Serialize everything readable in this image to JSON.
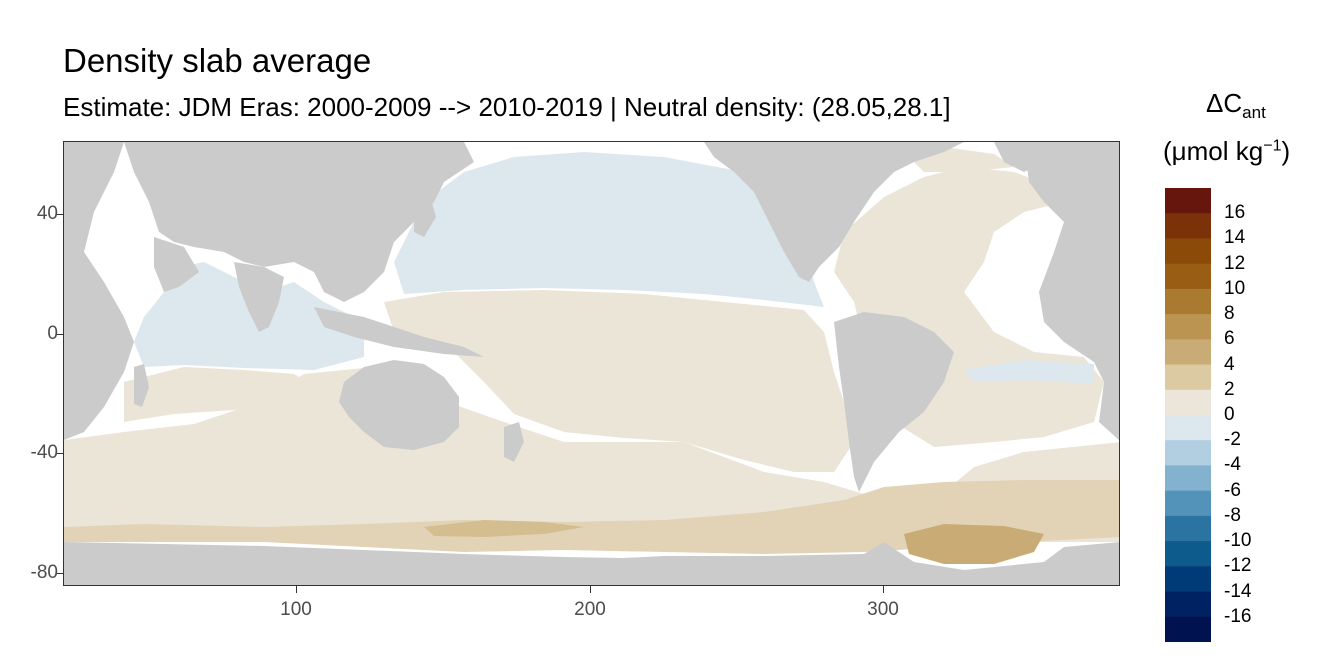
{
  "title": "Density slab average",
  "subtitle": "Estimate: JDM Eras: 2000-2009 --> 2010-2019 | Neutral density: (28.05,28.1]",
  "axes": {
    "y_ticks": [
      "40",
      "0",
      "-40",
      "-80"
    ],
    "x_ticks": [
      "100",
      "200",
      "300"
    ]
  },
  "legend": {
    "title_symbol": "ΔC",
    "title_subscript": "ant",
    "title_unit_prefix": "(μmol kg",
    "title_unit_exp": "−1",
    "title_unit_suffix": ")",
    "labels": [
      "16",
      "14",
      "12",
      "10",
      "8",
      "6",
      "4",
      "2",
      "0",
      "-2",
      "-4",
      "-6",
      "-8",
      "-10",
      "-12",
      "-14",
      "-16"
    ],
    "colors": [
      "#67160d",
      "#7b3209",
      "#8c4a09",
      "#9a5d14",
      "#aa7a30",
      "#ba9450",
      "#c9ac75",
      "#dccaa2",
      "#ece6da",
      "#dde8ee",
      "#b1cfe0",
      "#82b2cd",
      "#5393b9",
      "#2b74a2",
      "#0d5a8c",
      "#003b78",
      "#002263",
      "#00124f"
    ]
  },
  "colors": {
    "land": "#cbcbcb",
    "ocean_missing": "#ffffff",
    "pacific_neg": "#dde8ee",
    "main_pos": "#ebe5d8",
    "south_pos": "#e2d3b6",
    "weddell_pos": "#c9ac75"
  }
}
